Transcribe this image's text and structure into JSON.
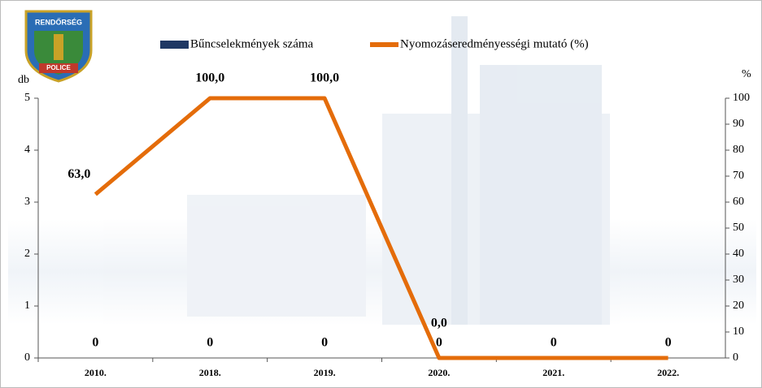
{
  "logo": {
    "top": "RENDŐRSÉG",
    "bottom": "POLICE"
  },
  "chart_data": {
    "type": "combo",
    "categories": [
      "2010.",
      "2018.",
      "2019.",
      "2020.",
      "2021.",
      "2022."
    ],
    "series": [
      {
        "name": "Bűncselekmények száma",
        "color": "#1f3864",
        "kind": "bar",
        "values": [
          0,
          0,
          0,
          0,
          0,
          0
        ]
      },
      {
        "name": "Nyomozáseredményességi mutató (%)",
        "color": "#e46c0a",
        "kind": "line",
        "axis": "y2",
        "values": [
          63,
          100,
          100,
          0,
          0,
          0
        ],
        "value_labels": [
          "63,0",
          "100,0",
          "100,0",
          "0,0",
          null,
          null
        ]
      }
    ],
    "ylabel": "db",
    "y2label": "%",
    "ylim": [
      0,
      5
    ],
    "yticks": [
      0,
      1,
      2,
      3,
      4,
      5
    ],
    "y2lim": [
      0,
      100
    ],
    "y2ticks": [
      0,
      10,
      20,
      30,
      40,
      50,
      60,
      70,
      80,
      90,
      100
    ]
  }
}
